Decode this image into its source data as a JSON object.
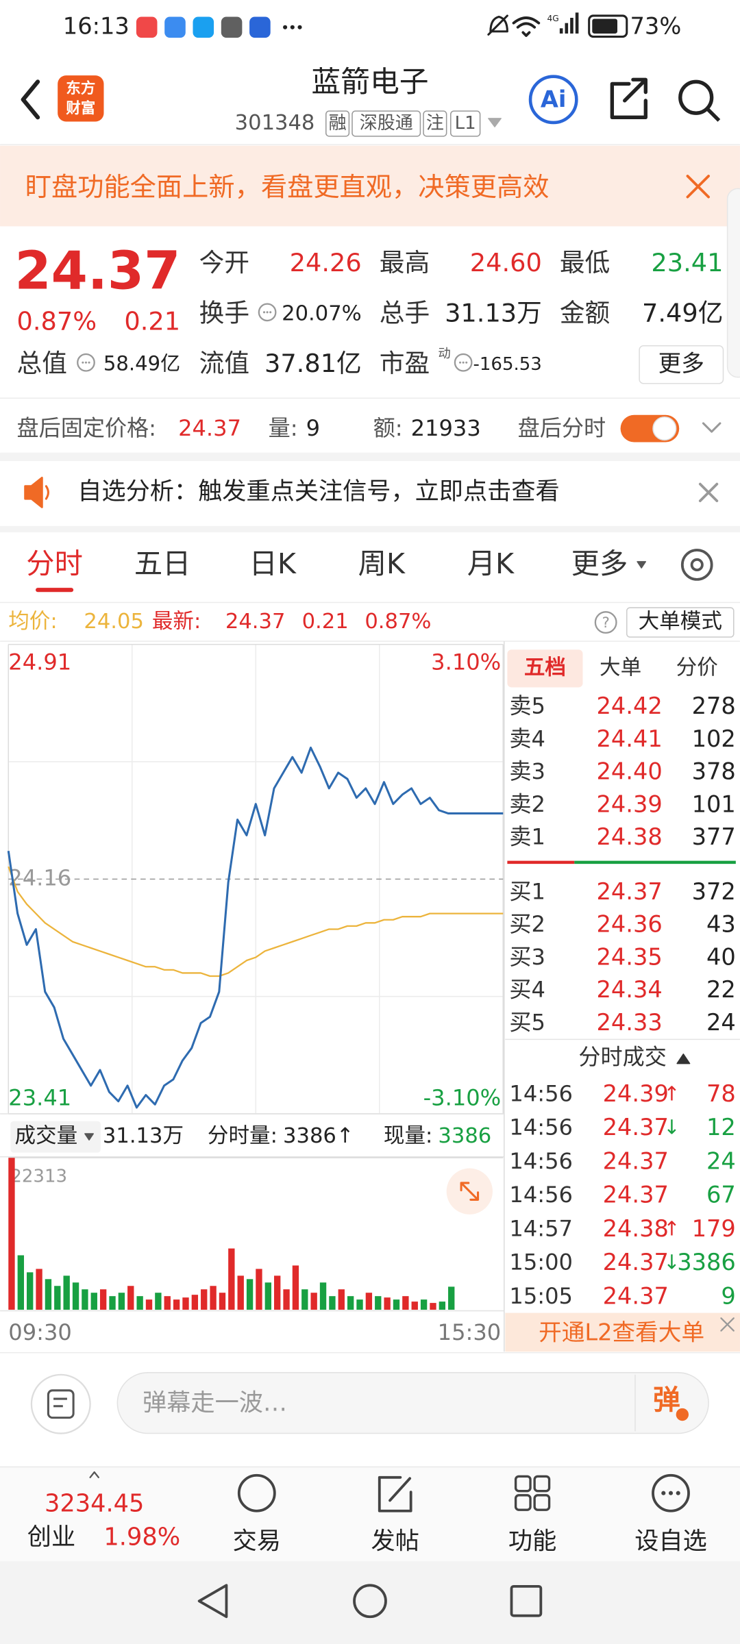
{
  "status_bar": {
    "time": "16:13",
    "network": "4G",
    "battery": "73%"
  },
  "header": {
    "logo": [
      "东方",
      "财富"
    ],
    "title": "蓝箭电子",
    "code": "301348",
    "tags": [
      "融",
      "深股通",
      "注",
      "L1"
    ],
    "ai": "Ai"
  },
  "banner": {
    "text": "盯盘功能全面上新，看盘更直观，决策更高效"
  },
  "quote": {
    "price": "24.37",
    "pct": "0.87%",
    "change": "0.21",
    "stats": [
      {
        "label": "今开",
        "value": "24.26"
      },
      {
        "label": "最高",
        "value": "24.60"
      },
      {
        "label": "最低",
        "value": "23.41"
      },
      {
        "label": "换手",
        "value": "20.07%"
      },
      {
        "label": "总手",
        "value": "31.13万"
      },
      {
        "label": "金额",
        "value": "7.49亿"
      },
      {
        "label": "总值",
        "value": "58.49亿"
      },
      {
        "label": "流值",
        "value": "37.81亿"
      },
      {
        "label": "市盈",
        "sup": "动",
        "value": "-165.53"
      }
    ],
    "more": "更多"
  },
  "after_hours": {
    "price_label": "盘后固定价格:",
    "price": "24.37",
    "volume_label": "量:",
    "volume": "9",
    "amount_label": "额:",
    "amount": "21933",
    "toggle_label": "盘后分时"
  },
  "notice": {
    "text": "自选分析：触发重点关注信号，立即点击查看"
  },
  "tabs": [
    "分时",
    "五日",
    "日K",
    "周K",
    "月K",
    "更多"
  ],
  "info_bar": {
    "avg": "24.05",
    "latest": "24.37",
    "change": "0.21",
    "pct": "0.87%",
    "help": "?",
    "mode": "大单模式"
  },
  "chart_data": [
    {
      "type": "line",
      "x": [
        0,
        5,
        10,
        15,
        20,
        25,
        30,
        35,
        40,
        45,
        50,
        55,
        60,
        65,
        70,
        75,
        80,
        85,
        90,
        95,
        100,
        105,
        110,
        115,
        120,
        125,
        130,
        135,
        140,
        145,
        150,
        155,
        160,
        165,
        170,
        175,
        180,
        185,
        190,
        195,
        200,
        205,
        210,
        215,
        220,
        225,
        230,
        235,
        240,
        245,
        250,
        255,
        260,
        265,
        270
      ],
      "xlim": [
        0,
        270
      ],
      "xticks": [
        {
          "value": 0,
          "label": "09:30"
        },
        {
          "value": 270,
          "label": "15:30"
        }
      ],
      "ylim": [
        23.41,
        24.91
      ],
      "yticks": [
        23.41,
        24.16,
        24.91
      ],
      "y2lim": [
        -3.1,
        3.1
      ],
      "y2ticks": [
        {
          "value": -3.1,
          "label": "-3.10%"
        },
        {
          "value": 3.1,
          "label": "3.10%"
        }
      ],
      "grid": true,
      "series": [
        {
          "name": "最新:",
          "color": "#2e6bb0",
          "values": [
            24.25,
            24.05,
            23.95,
            24.0,
            23.8,
            23.75,
            23.65,
            23.6,
            23.55,
            23.5,
            23.55,
            23.48,
            23.45,
            23.5,
            23.43,
            23.47,
            23.44,
            23.5,
            23.52,
            23.58,
            23.62,
            23.7,
            23.72,
            23.8,
            24.15,
            24.35,
            24.3,
            24.4,
            24.3,
            24.45,
            24.5,
            24.55,
            24.5,
            24.58,
            24.52,
            24.45,
            24.5,
            24.48,
            24.42,
            24.45,
            24.4,
            24.47,
            24.4,
            24.43,
            24.45,
            24.4,
            24.42,
            24.38,
            24.37,
            24.37,
            24.37,
            24.37,
            24.37,
            24.37,
            24.37
          ]
        },
        {
          "name": "均价:",
          "color": "#ecb43c",
          "values": [
            24.2,
            24.12,
            24.08,
            24.05,
            24.02,
            24.0,
            23.98,
            23.96,
            23.95,
            23.94,
            23.93,
            23.92,
            23.91,
            23.9,
            23.89,
            23.88,
            23.88,
            23.87,
            23.87,
            23.86,
            23.86,
            23.86,
            23.85,
            23.85,
            23.86,
            23.88,
            23.9,
            23.91,
            23.93,
            23.94,
            23.95,
            23.96,
            23.97,
            23.98,
            23.99,
            24.0,
            24.0,
            24.01,
            24.01,
            24.02,
            24.02,
            24.03,
            24.03,
            24.04,
            24.04,
            24.04,
            24.05,
            24.05,
            24.05,
            24.05,
            24.05,
            24.05,
            24.05,
            24.05,
            24.05
          ]
        }
      ]
    },
    {
      "type": "bar",
      "x": [
        0,
        5,
        10,
        15,
        20,
        25,
        30,
        35,
        40,
        45,
        50,
        55,
        60,
        65,
        70,
        75,
        80,
        85,
        90,
        95,
        100,
        105,
        110,
        115,
        120,
        125,
        130,
        135,
        140,
        145,
        150,
        155,
        160,
        165,
        170,
        175,
        180,
        185,
        190,
        195,
        200,
        205,
        210,
        215,
        220,
        225,
        230,
        235,
        240
      ],
      "xlim": [
        0,
        270
      ],
      "values": [
        22313,
        8000,
        5500,
        6000,
        4500,
        3500,
        5000,
        4000,
        3000,
        2500,
        3000,
        2000,
        2500,
        3500,
        2000,
        1500,
        2500,
        2000,
        1500,
        1800,
        2200,
        3000,
        3500,
        2500,
        9000,
        5000,
        4500,
        6000,
        4000,
        5000,
        3000,
        6500,
        3000,
        2500,
        4000,
        2000,
        3000,
        2000,
        1500,
        2500,
        2000,
        1800,
        1500,
        2000,
        1200,
        1500,
        1000,
        1200,
        3386
      ],
      "ylim": [
        0,
        22313
      ],
      "yticks": [
        22313
      ],
      "up_color": "#e02a2a",
      "down_color": "#18a042"
    }
  ],
  "volume_header": {
    "label": "成交量",
    "total": "31.13万",
    "tick_label": "分时量:",
    "tick_value": "3386↑",
    "current_label": "现量:",
    "current": "3386"
  },
  "order_book": {
    "tabs": [
      "五档",
      "大单",
      "分价"
    ],
    "asks": [
      {
        "label": "卖5",
        "price": "24.42",
        "volume": "278"
      },
      {
        "label": "卖4",
        "price": "24.41",
        "volume": "102"
      },
      {
        "label": "卖3",
        "price": "24.40",
        "volume": "378"
      },
      {
        "label": "卖2",
        "price": "24.39",
        "volume": "101"
      },
      {
        "label": "卖1",
        "price": "24.38",
        "volume": "377"
      }
    ],
    "bids": [
      {
        "label": "买1",
        "price": "24.37",
        "volume": "372"
      },
      {
        "label": "买2",
        "price": "24.36",
        "volume": "43"
      },
      {
        "label": "买3",
        "price": "24.35",
        "volume": "40"
      },
      {
        "label": "买4",
        "price": "24.34",
        "volume": "22"
      },
      {
        "label": "买5",
        "price": "24.33",
        "volume": "24"
      }
    ],
    "trades_title": "分时成交",
    "trades": [
      {
        "time": "14:56",
        "price": "24.39",
        "arrow": "↑",
        "volume": "78",
        "color": "#e02a2a"
      },
      {
        "time": "14:56",
        "price": "24.37",
        "arrow": "↓",
        "volume": "12",
        "color": "#18a042"
      },
      {
        "time": "14:56",
        "price": "24.37",
        "volume": "24",
        "color": "#18a042"
      },
      {
        "time": "14:56",
        "price": "24.37",
        "volume": "67",
        "color": "#18a042"
      },
      {
        "time": "14:57",
        "price": "24.38",
        "arrow": "↑",
        "volume": "179",
        "color": "#e02a2a"
      },
      {
        "time": "15:00",
        "price": "24.37",
        "arrow": "↓",
        "volume": "3386",
        "color": "#18a042"
      },
      {
        "time": "15:05",
        "price": "24.37",
        "volume": "9",
        "color": "#18a042"
      }
    ],
    "l2": "开通L2查看大单"
  },
  "comment": {
    "placeholder": "弹幕走一波…",
    "button": "弹"
  },
  "bottom_nav": {
    "index_value": "3234.45",
    "index_name": "创业",
    "index_pct": "1.98%",
    "items": [
      "交易",
      "发帖",
      "功能",
      "设自选"
    ]
  }
}
